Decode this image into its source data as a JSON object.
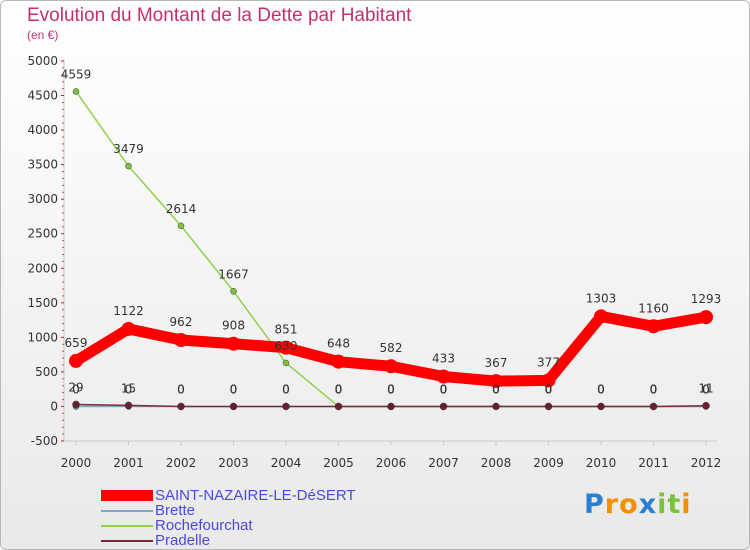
{
  "chart_data": {
    "type": "line",
    "title": "Evolution du Montant de la Dette par Habitant",
    "subtitle": "(en €)",
    "categories": [
      "2000",
      "2001",
      "2002",
      "2003",
      "2004",
      "2005",
      "2006",
      "2007",
      "2008",
      "2009",
      "2010",
      "2011",
      "2012"
    ],
    "ylim": [
      -500,
      5000
    ],
    "yticks": [
      "-500",
      "0",
      "500",
      "1000",
      "1500",
      "2000",
      "2500",
      "3000",
      "3500",
      "4000",
      "4500",
      "5000"
    ],
    "ytick_values": [
      -500,
      0,
      500,
      1000,
      1500,
      2000,
      2500,
      3000,
      3500,
      4000,
      4500,
      5000
    ],
    "series": [
      {
        "name": "SAINT-NAZAIRE-LE-DéSERT",
        "color": "#ff0000",
        "marker": "#ff0000",
        "values": [
          659,
          1122,
          962,
          908,
          851,
          648,
          582,
          433,
          367,
          377,
          1303,
          1160,
          1293
        ],
        "labels": [
          "659",
          "1122",
          "962",
          "908",
          "851",
          "648",
          "582",
          "433",
          "367",
          "377",
          "1303",
          "1160",
          "1293"
        ]
      },
      {
        "name": "Brette",
        "color": "#7fa8c8",
        "marker": "#5a86b0",
        "values": [
          0,
          0,
          0,
          0,
          0,
          0,
          0,
          0,
          0,
          0,
          0,
          0,
          0
        ],
        "labels": [
          "0",
          "0",
          "0",
          "0",
          "0",
          "0",
          "0",
          "0",
          "0",
          "0",
          "0",
          "0",
          "0"
        ]
      },
      {
        "name": "Rochefourchat",
        "color": "#8fd24a",
        "marker": "#7cc23a",
        "values": [
          4559,
          3479,
          2614,
          1667,
          630,
          0,
          0,
          0,
          0,
          0,
          0,
          0,
          0
        ],
        "labels": [
          "4559",
          "3479",
          "2614",
          "1667",
          "630",
          "0",
          "0",
          "0",
          "0",
          "0",
          "0",
          "0",
          "0"
        ]
      },
      {
        "name": "Pradelle",
        "color": "#7a2a3a",
        "marker": "#6b1f2e",
        "values": [
          29,
          15,
          0,
          0,
          0,
          0,
          0,
          0,
          0,
          0,
          0,
          0,
          11
        ],
        "labels": [
          "29",
          "15",
          "0",
          "0",
          "0",
          "0",
          "0",
          "0",
          "0",
          "0",
          "0",
          "0",
          "11"
        ]
      }
    ]
  },
  "legend": {
    "items": [
      {
        "label": "SAINT-NAZAIRE-LE-DéSERT"
      },
      {
        "label": "Brette"
      },
      {
        "label": "Rochefourchat"
      },
      {
        "label": "Pradelle"
      }
    ]
  },
  "logo": {
    "letters": [
      "P",
      "r",
      "o",
      "x",
      "i",
      "t",
      "i"
    ],
    "colors": [
      "#2a7fd4",
      "#f29000",
      "#f29000",
      "#2a7fd4",
      "#7cc23a",
      "#7cc23a",
      "#f29000"
    ]
  }
}
